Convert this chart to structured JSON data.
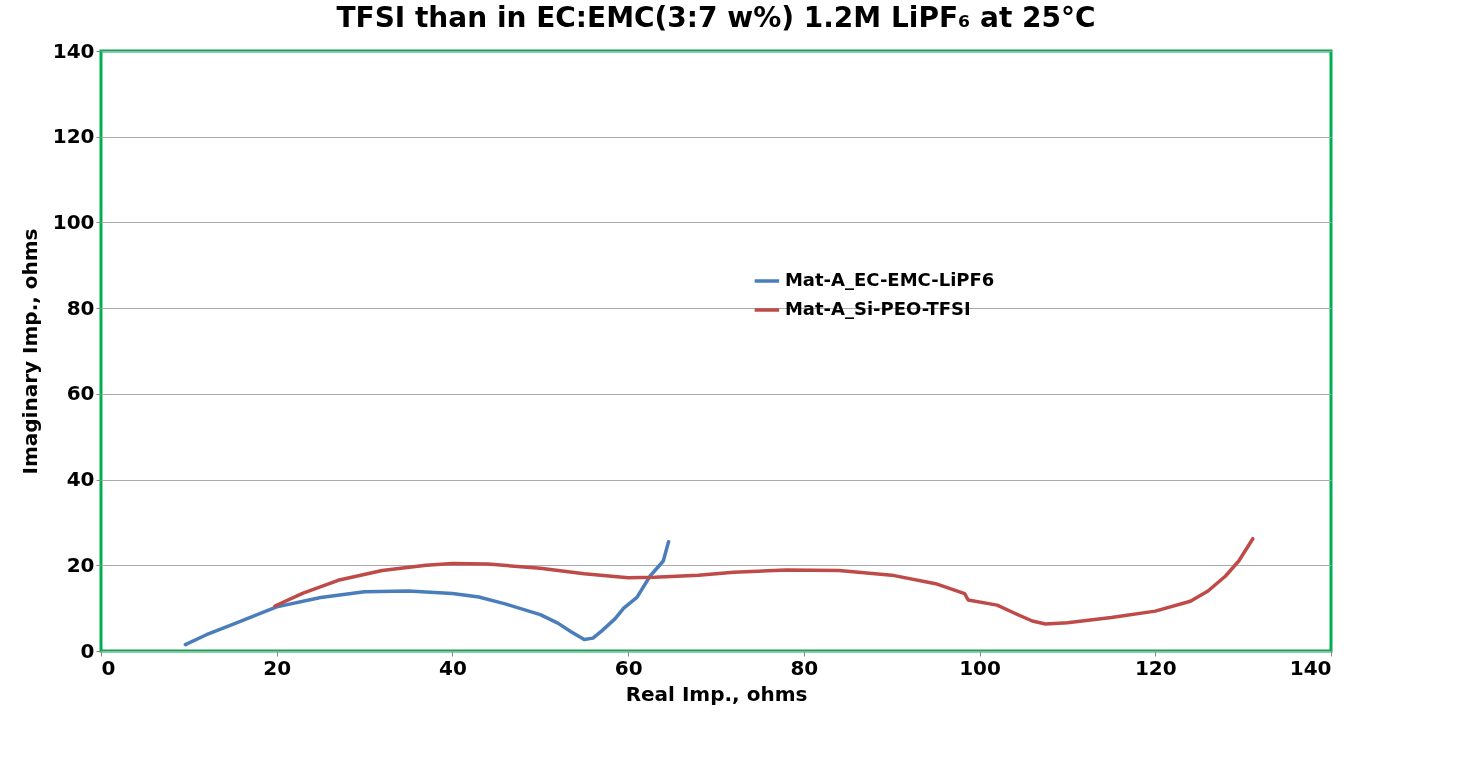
{
  "chart_data": {
    "type": "line",
    "title": "TFSI than in EC:EMC(3:7 w%) 1.2M LiPF₆ at 25°C",
    "xlabel": "Real Imp., ohms",
    "ylabel": "Imaginary Imp., ohms",
    "xlim": [
      0,
      140
    ],
    "xticks": [
      0,
      20,
      40,
      60,
      80,
      100,
      120,
      140
    ],
    "ylim": [
      0,
      140
    ],
    "yticks": [
      0,
      20,
      40,
      60,
      80,
      100,
      120,
      140
    ],
    "grid": "y",
    "legend": "right",
    "series": [
      {
        "name": "Mat-A_EC-EMC-LiPF6",
        "color": "#4a7ebb",
        "x": [
          9.6,
          12,
          15,
          20,
          25,
          30,
          35,
          40,
          43,
          46,
          50,
          52,
          53.5,
          55,
          56,
          57,
          58.5,
          59.5,
          61,
          62.5,
          64,
          64.6
        ],
        "values": [
          1.5,
          3.8,
          6.2,
          10.3,
          12.5,
          13.8,
          14,
          13.4,
          12.6,
          11,
          8.5,
          6.5,
          4.5,
          2.7,
          3,
          4.7,
          7.5,
          10,
          12.5,
          17.5,
          21,
          25.5
        ]
      },
      {
        "name": "Mat-A_Si-PEO-TFSI",
        "color": "#be4b48",
        "x": [
          19.8,
          23,
          27,
          32,
          37,
          40,
          44,
          50,
          55,
          60,
          63,
          68,
          72,
          78,
          84,
          90,
          95,
          98.3,
          98.7,
          102,
          104,
          106,
          107.5,
          110,
          115,
          120,
          124,
          126,
          128,
          129.5,
          131.1
        ],
        "values": [
          10.5,
          13.5,
          16.5,
          18.8,
          20,
          20.4,
          20.3,
          19.3,
          18,
          17.1,
          17.2,
          17.7,
          18.4,
          18.9,
          18.8,
          17.7,
          15.7,
          13.4,
          11.9,
          10.7,
          8.8,
          7,
          6.3,
          6.6,
          7.8,
          9.3,
          11.6,
          14,
          17.5,
          21,
          26.2
        ]
      }
    ]
  }
}
